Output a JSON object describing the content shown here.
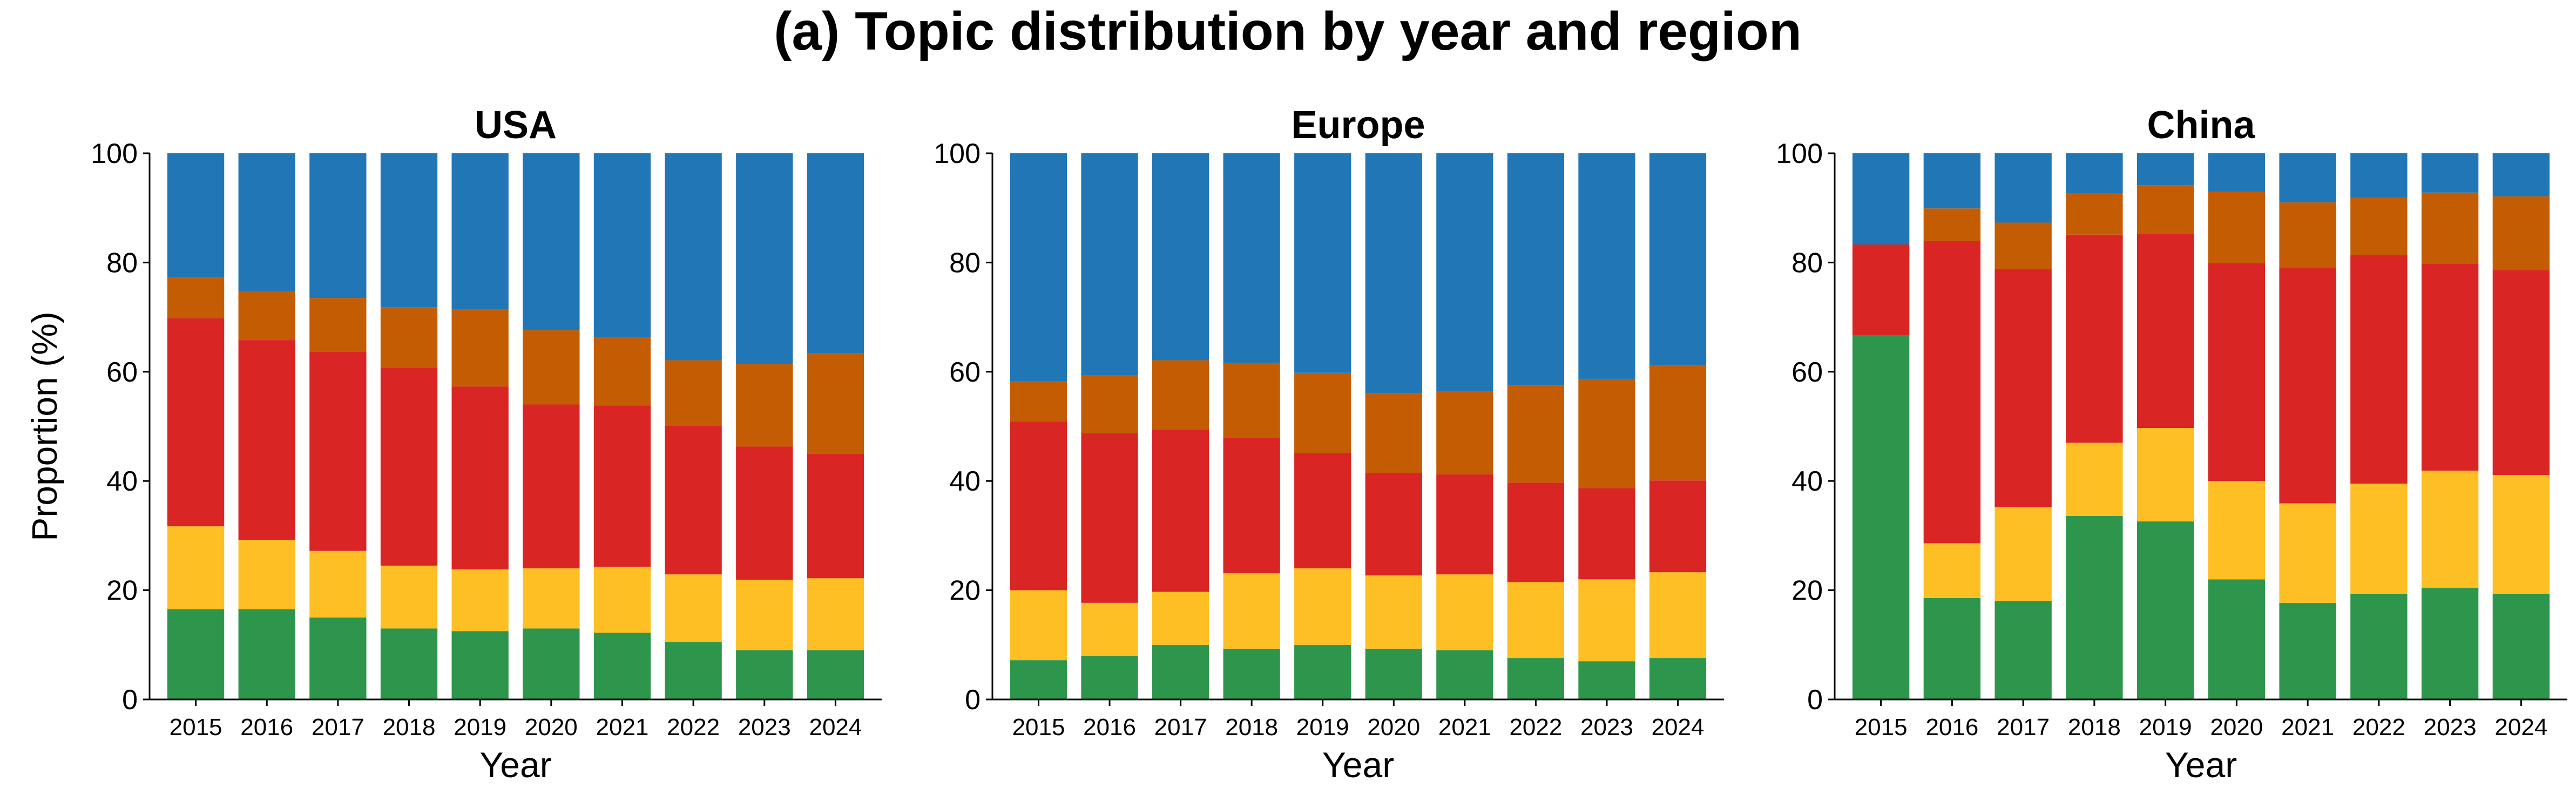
{
  "figure": {
    "title": "(a) Topic distribution by year and region"
  },
  "colors": {
    "green": "#2e964c",
    "yellow": "#fdbf24",
    "red": "#d92524",
    "orange": "#c45c04",
    "blue": "#2177b5"
  },
  "chart_data": [
    {
      "type": "bar",
      "stacked": true,
      "title": "USA",
      "xlabel": "Year",
      "ylabel": "Proportion (%)",
      "ylim": [
        0,
        100
      ],
      "yticks": [
        0,
        20,
        40,
        60,
        80,
        100
      ],
      "categories": [
        "2015",
        "2016",
        "2017",
        "2018",
        "2019",
        "2020",
        "2021",
        "2022",
        "2023",
        "2024"
      ],
      "series": [
        {
          "color": "green",
          "values": [
            16.5,
            16.5,
            15.0,
            13.0,
            12.5,
            13.0,
            12.2,
            10.5,
            9.0,
            9.0
          ]
        },
        {
          "color": "yellow",
          "values": [
            15.2,
            12.7,
            12.2,
            11.5,
            11.3,
            11.0,
            12.1,
            12.4,
            12.9,
            13.2
          ]
        },
        {
          "color": "red",
          "values": [
            38.1,
            36.6,
            36.5,
            36.3,
            33.5,
            30.0,
            29.5,
            27.2,
            24.4,
            22.8
          ]
        },
        {
          "color": "orange",
          "values": [
            7.4,
            8.9,
            9.8,
            11.0,
            14.1,
            13.6,
            12.5,
            12.0,
            15.1,
            18.4
          ]
        },
        {
          "color": "blue",
          "values": [
            22.8,
            25.3,
            26.5,
            28.2,
            28.6,
            32.4,
            33.7,
            37.9,
            38.6,
            36.6
          ]
        }
      ]
    },
    {
      "type": "bar",
      "stacked": true,
      "title": "Europe",
      "xlabel": "Year",
      "ylabel": "",
      "ylim": [
        0,
        100
      ],
      "yticks": [
        0,
        20,
        40,
        60,
        80,
        100
      ],
      "categories": [
        "2015",
        "2016",
        "2017",
        "2018",
        "2019",
        "2020",
        "2021",
        "2022",
        "2023",
        "2024"
      ],
      "series": [
        {
          "color": "green",
          "values": [
            7.2,
            8.0,
            10.0,
            9.3,
            10.0,
            9.3,
            9.0,
            7.6,
            7.0,
            7.6
          ]
        },
        {
          "color": "yellow",
          "values": [
            12.8,
            9.7,
            9.7,
            13.8,
            14.0,
            13.4,
            13.9,
            13.9,
            15.0,
            15.7
          ]
        },
        {
          "color": "red",
          "values": [
            30.9,
            31.1,
            29.7,
            24.8,
            21.1,
            18.8,
            18.3,
            18.2,
            16.7,
            16.8
          ]
        },
        {
          "color": "orange",
          "values": [
            7.4,
            10.5,
            12.7,
            13.7,
            14.7,
            14.5,
            15.3,
            17.8,
            20.0,
            21.0
          ]
        },
        {
          "color": "blue",
          "values": [
            41.7,
            40.7,
            37.9,
            38.4,
            40.2,
            44.0,
            43.5,
            42.5,
            41.3,
            38.9
          ]
        }
      ]
    },
    {
      "type": "bar",
      "stacked": true,
      "title": "China",
      "xlabel": "Year",
      "ylabel": "",
      "ylim": [
        0,
        100
      ],
      "yticks": [
        0,
        20,
        40,
        60,
        80,
        100
      ],
      "categories": [
        "2015",
        "2016",
        "2017",
        "2018",
        "2019",
        "2020",
        "2021",
        "2022",
        "2023",
        "2024"
      ],
      "series": [
        {
          "color": "green",
          "values": [
            66.7,
            18.6,
            18.0,
            33.6,
            32.6,
            22.0,
            17.7,
            19.3,
            20.4,
            19.3
          ]
        },
        {
          "color": "yellow",
          "values": [
            0.0,
            10.0,
            17.2,
            13.4,
            17.1,
            18.0,
            18.2,
            20.2,
            21.5,
            21.8
          ]
        },
        {
          "color": "red",
          "values": [
            16.6,
            55.3,
            43.6,
            38.1,
            35.5,
            39.9,
            43.1,
            41.9,
            37.9,
            37.5
          ]
        },
        {
          "color": "orange",
          "values": [
            0.0,
            6.0,
            8.5,
            7.5,
            8.9,
            13.0,
            12.0,
            10.5,
            13.0,
            13.5
          ]
        },
        {
          "color": "blue",
          "values": [
            16.7,
            10.1,
            12.7,
            7.4,
            5.9,
            7.1,
            9.0,
            8.1,
            7.2,
            7.9
          ]
        }
      ]
    }
  ]
}
